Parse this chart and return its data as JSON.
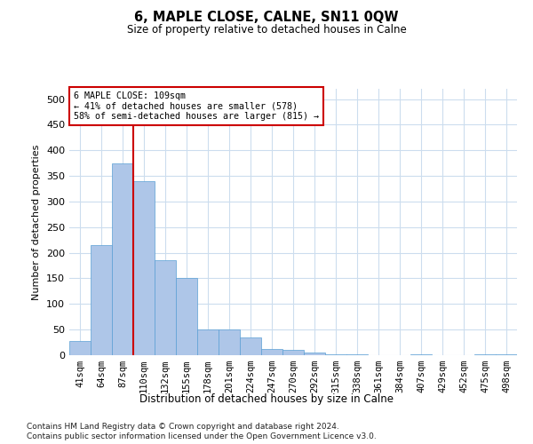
{
  "title": "6, MAPLE CLOSE, CALNE, SN11 0QW",
  "subtitle": "Size of property relative to detached houses in Calne",
  "xlabel": "Distribution of detached houses by size in Calne",
  "ylabel": "Number of detached properties",
  "footnote1": "Contains HM Land Registry data © Crown copyright and database right 2024.",
  "footnote2": "Contains public sector information licensed under the Open Government Licence v3.0.",
  "bar_labels": [
    "41sqm",
    "64sqm",
    "87sqm",
    "110sqm",
    "132sqm",
    "155sqm",
    "178sqm",
    "201sqm",
    "224sqm",
    "247sqm",
    "270sqm",
    "292sqm",
    "315sqm",
    "338sqm",
    "361sqm",
    "384sqm",
    "407sqm",
    "429sqm",
    "452sqm",
    "475sqm",
    "498sqm"
  ],
  "bar_values": [
    28,
    215,
    375,
    340,
    185,
    150,
    50,
    50,
    35,
    13,
    10,
    5,
    2,
    1,
    0,
    0,
    1,
    0,
    0,
    1,
    1
  ],
  "bar_color": "#aec6e8",
  "bar_edge_color": "#5a9fd4",
  "annotation_line1": "6 MAPLE CLOSE: 109sqm",
  "annotation_line2": "← 41% of detached houses are smaller (578)",
  "annotation_line3": "58% of semi-detached houses are larger (815) →",
  "vline_color": "#cc0000",
  "box_edge_color": "#cc0000",
  "background_color": "#ffffff",
  "grid_color": "#ccddee",
  "ylim": [
    0,
    520
  ],
  "yticks": [
    0,
    50,
    100,
    150,
    200,
    250,
    300,
    350,
    400,
    450,
    500
  ]
}
